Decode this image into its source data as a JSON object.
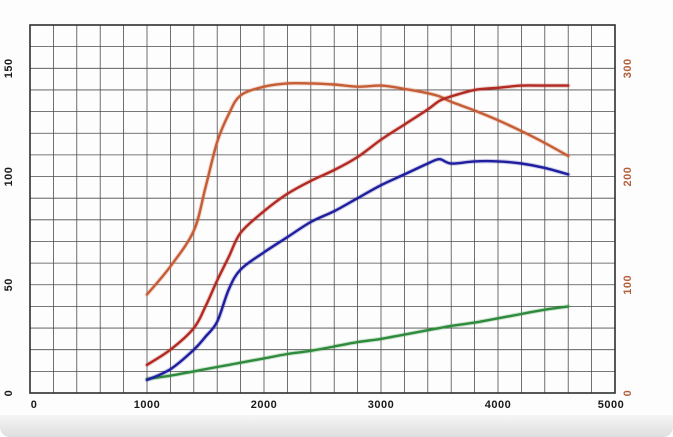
{
  "chart_data": {
    "type": "line",
    "title": "",
    "xlabel": "",
    "ylabel_left": "",
    "ylabel_right": "",
    "grid": true,
    "legend": "none",
    "x_axis": {
      "range": [
        0,
        5000
      ],
      "ticks": [
        0,
        1000,
        2000,
        3000,
        4000,
        5000
      ],
      "minor_step": 200,
      "label_color": "#1a1a1a"
    },
    "left_axis": {
      "range": [
        0,
        170
      ],
      "ticks": [
        0,
        50,
        100,
        150
      ],
      "minor_step": 10,
      "label_color": "#1a1a1a"
    },
    "right_axis": {
      "range": [
        0,
        340
      ],
      "ticks": [
        0,
        100,
        200,
        300
      ],
      "label_color": "#b4603c"
    },
    "x": [
      1000,
      1200,
      1400,
      1500,
      1600,
      1700,
      1800,
      2000,
      2200,
      2400,
      2600,
      2800,
      3000,
      3200,
      3400,
      3500,
      3600,
      3800,
      4000,
      4200,
      4400,
      4600
    ],
    "series": [
      {
        "name": "orange-curve",
        "axis": "right",
        "color": "#c65d35",
        "values": [
          91,
          117,
          150,
          190,
          232,
          258,
          275,
          283,
          286,
          286,
          285,
          283,
          284,
          281,
          277,
          274,
          269,
          261,
          252,
          242,
          231,
          219
        ]
      },
      {
        "name": "red-curve",
        "axis": "left",
        "color": "#b22a22",
        "values": [
          13,
          20,
          30,
          40,
          52,
          63,
          74,
          84,
          92,
          98,
          103,
          109,
          117,
          124,
          131,
          135,
          137,
          140,
          141,
          142,
          142,
          142
        ]
      },
      {
        "name": "blue-curve",
        "axis": "left",
        "color": "#1e1e9e",
        "values": [
          6,
          11,
          20,
          26,
          33,
          48,
          57,
          65,
          72,
          79,
          84,
          90,
          96,
          101,
          106,
          108,
          106,
          107,
          107,
          106,
          104,
          101
        ]
      },
      {
        "name": "green-curve",
        "axis": "left",
        "color": "#2e8b3c",
        "values": [
          6.5,
          8,
          10,
          11,
          12,
          13,
          14,
          16,
          18,
          19.5,
          21.5,
          23.5,
          25,
          27,
          29,
          30,
          31,
          32.5,
          34.5,
          36.5,
          38.5,
          40
        ]
      }
    ],
    "grid_color": "#4d4d4d",
    "border_color": "#2f2f2f",
    "background_color": "#fdfdfd"
  }
}
